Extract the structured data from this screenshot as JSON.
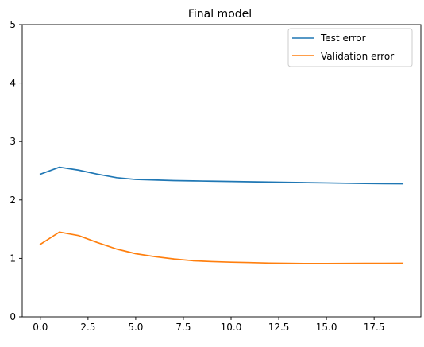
{
  "chart_data": {
    "type": "line",
    "title": "Final model",
    "xlabel": "",
    "ylabel": "",
    "xlim": [
      -0.95,
      19.95
    ],
    "ylim": [
      0,
      5
    ],
    "x_ticks": [
      0,
      2.5,
      5,
      7.5,
      10,
      12.5,
      15,
      17.5
    ],
    "x_tick_labels": [
      "0.0",
      "2.5",
      "5.0",
      "7.5",
      "10.0",
      "12.5",
      "15.0",
      "17.5"
    ],
    "y_ticks": [
      0,
      1,
      2,
      3,
      4,
      5
    ],
    "y_tick_labels": [
      "0",
      "1",
      "2",
      "3",
      "4",
      "5"
    ],
    "grid": false,
    "legend_position": "top-right",
    "x": [
      0,
      1,
      2,
      3,
      4,
      5,
      6,
      7,
      8,
      9,
      10,
      11,
      12,
      13,
      14,
      15,
      16,
      17,
      18,
      19
    ],
    "series": [
      {
        "name": "Test error",
        "color": "#1f77b4",
        "values": [
          2.44,
          2.56,
          2.51,
          2.44,
          2.38,
          2.35,
          2.34,
          2.33,
          2.325,
          2.32,
          2.315,
          2.31,
          2.305,
          2.3,
          2.295,
          2.29,
          2.285,
          2.28,
          2.277,
          2.275
        ]
      },
      {
        "name": "Validation error",
        "color": "#ff7f0e",
        "values": [
          1.24,
          1.45,
          1.39,
          1.27,
          1.16,
          1.08,
          1.03,
          0.99,
          0.96,
          0.945,
          0.935,
          0.928,
          0.92,
          0.915,
          0.912,
          0.912,
          0.914,
          0.915,
          0.916,
          0.917
        ]
      }
    ]
  }
}
